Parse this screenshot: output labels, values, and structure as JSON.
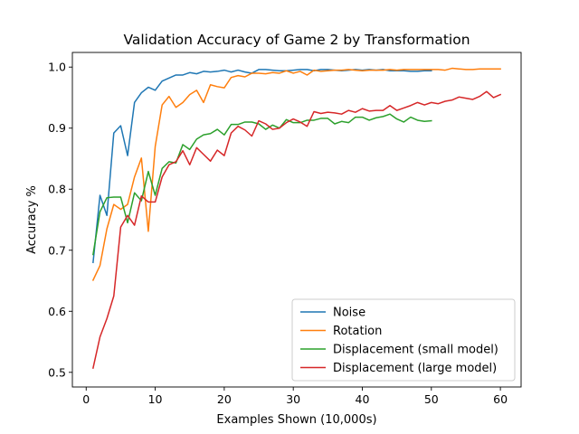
{
  "chart_data": {
    "type": "line",
    "title": "Validation Accuracy of Game 2 by Transformation",
    "xlabel": "Examples Shown (10,000s)",
    "ylabel": "Accuracy %",
    "xlim": [
      -2,
      63
    ],
    "ylim": [
      0.476,
      1.024
    ],
    "xticks": [
      0,
      10,
      20,
      30,
      40,
      50,
      60
    ],
    "yticks": [
      0.5,
      0.6,
      0.7,
      0.8,
      0.9,
      1.0
    ],
    "xtick_labels": [
      "0",
      "10",
      "20",
      "30",
      "40",
      "50",
      "60"
    ],
    "ytick_labels": [
      "0.5",
      "0.6",
      "0.7",
      "0.8",
      "0.9",
      "1.0"
    ],
    "grid": false,
    "legend_position": "lower-right",
    "series": [
      {
        "name": "Noise",
        "color": "#1f77b4",
        "x": [
          1,
          2,
          3,
          4,
          5,
          6,
          7,
          8,
          9,
          10,
          11,
          12,
          13,
          14,
          15,
          16,
          17,
          18,
          19,
          20,
          21,
          22,
          23,
          24,
          25,
          26,
          27,
          28,
          29,
          30,
          31,
          32,
          33,
          34,
          35,
          36,
          37,
          38,
          39,
          40,
          41,
          42,
          43,
          44,
          45,
          46,
          47,
          48,
          49,
          50
        ],
        "y": [
          0.68,
          0.79,
          0.757,
          0.892,
          0.904,
          0.855,
          0.942,
          0.958,
          0.967,
          0.962,
          0.977,
          0.982,
          0.987,
          0.987,
          0.991,
          0.989,
          0.993,
          0.992,
          0.993,
          0.995,
          0.992,
          0.995,
          0.992,
          0.99,
          0.996,
          0.996,
          0.995,
          0.994,
          0.994,
          0.995,
          0.996,
          0.996,
          0.994,
          0.996,
          0.996,
          0.995,
          0.994,
          0.995,
          0.996,
          0.995,
          0.996,
          0.995,
          0.996,
          0.994,
          0.994,
          0.994,
          0.993,
          0.993,
          0.994,
          0.994
        ]
      },
      {
        "name": "Rotation",
        "color": "#ff7f0e",
        "x": [
          1,
          2,
          3,
          4,
          5,
          6,
          7,
          8,
          9,
          10,
          11,
          12,
          13,
          14,
          15,
          16,
          17,
          18,
          19,
          20,
          21,
          22,
          23,
          24,
          25,
          26,
          27,
          28,
          29,
          30,
          31,
          32,
          33,
          34,
          35,
          36,
          37,
          38,
          39,
          40,
          41,
          42,
          43,
          44,
          45,
          46,
          47,
          48,
          49,
          50,
          51,
          52,
          53,
          54,
          55,
          56,
          57,
          58,
          59,
          60
        ],
        "y": [
          0.651,
          0.675,
          0.735,
          0.775,
          0.767,
          0.775,
          0.82,
          0.851,
          0.731,
          0.87,
          0.938,
          0.952,
          0.934,
          0.942,
          0.955,
          0.962,
          0.942,
          0.971,
          0.968,
          0.966,
          0.983,
          0.986,
          0.984,
          0.99,
          0.99,
          0.989,
          0.991,
          0.99,
          0.994,
          0.99,
          0.993,
          0.987,
          0.995,
          0.993,
          0.994,
          0.995,
          0.995,
          0.996,
          0.995,
          0.994,
          0.995,
          0.995,
          0.995,
          0.996,
          0.995,
          0.996,
          0.996,
          0.996,
          0.996,
          0.996,
          0.996,
          0.995,
          0.998,
          0.997,
          0.996,
          0.996,
          0.997,
          0.997,
          0.997,
          0.997
        ]
      },
      {
        "name": "Displacement (small model)",
        "color": "#2ca02c",
        "x": [
          1,
          2,
          3,
          4,
          5,
          6,
          7,
          8,
          9,
          10,
          11,
          12,
          13,
          14,
          15,
          16,
          17,
          18,
          19,
          20,
          21,
          22,
          23,
          24,
          25,
          26,
          27,
          28,
          29,
          30,
          31,
          32,
          33,
          34,
          35,
          36,
          37,
          38,
          39,
          40,
          41,
          42,
          43,
          44,
          45,
          46,
          47,
          48,
          49,
          50
        ],
        "y": [
          0.693,
          0.763,
          0.786,
          0.787,
          0.787,
          0.745,
          0.794,
          0.781,
          0.829,
          0.79,
          0.834,
          0.845,
          0.843,
          0.873,
          0.865,
          0.882,
          0.889,
          0.891,
          0.898,
          0.889,
          0.906,
          0.906,
          0.91,
          0.91,
          0.907,
          0.898,
          0.905,
          0.9,
          0.914,
          0.909,
          0.909,
          0.913,
          0.913,
          0.916,
          0.916,
          0.907,
          0.911,
          0.909,
          0.918,
          0.918,
          0.913,
          0.917,
          0.919,
          0.923,
          0.915,
          0.91,
          0.918,
          0.913,
          0.911,
          0.912
        ]
      },
      {
        "name": "Displacement (large model)",
        "color": "#d62728",
        "x": [
          1,
          2,
          3,
          4,
          5,
          6,
          7,
          8,
          9,
          10,
          11,
          12,
          13,
          14,
          15,
          16,
          17,
          18,
          19,
          20,
          21,
          22,
          23,
          24,
          25,
          26,
          27,
          28,
          29,
          30,
          31,
          32,
          33,
          34,
          35,
          36,
          37,
          38,
          39,
          40,
          41,
          42,
          43,
          44,
          45,
          46,
          47,
          48,
          49,
          50,
          51,
          52,
          53,
          54,
          55,
          56,
          57,
          58,
          59,
          60
        ],
        "y": [
          0.507,
          0.558,
          0.588,
          0.625,
          0.738,
          0.757,
          0.741,
          0.789,
          0.779,
          0.779,
          0.82,
          0.84,
          0.845,
          0.863,
          0.84,
          0.868,
          0.857,
          0.846,
          0.864,
          0.855,
          0.892,
          0.903,
          0.897,
          0.887,
          0.912,
          0.907,
          0.898,
          0.9,
          0.909,
          0.915,
          0.91,
          0.903,
          0.927,
          0.924,
          0.926,
          0.925,
          0.923,
          0.929,
          0.926,
          0.932,
          0.928,
          0.929,
          0.929,
          0.937,
          0.929,
          0.933,
          0.937,
          0.942,
          0.938,
          0.942,
          0.94,
          0.944,
          0.946,
          0.951,
          0.949,
          0.947,
          0.952,
          0.96,
          0.95,
          0.955
        ]
      }
    ]
  }
}
